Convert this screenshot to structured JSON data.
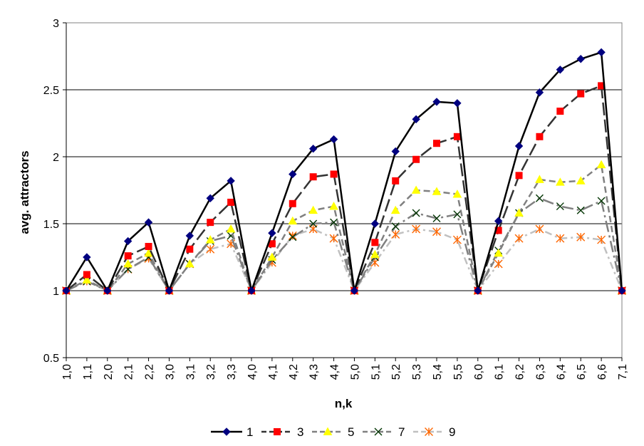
{
  "chart_data": {
    "type": "line",
    "title": "",
    "xlabel": "n,k",
    "ylabel": "avg. attractors",
    "ylim": [
      0.5,
      3
    ],
    "yticks": [
      "0.5",
      "1",
      "1.5",
      "2",
      "2.5",
      "3"
    ],
    "grid": "horizontal major gridlines",
    "legend_position": "bottom",
    "categories": [
      "1,0",
      "1,1",
      "2,0",
      "2,1",
      "2,2",
      "3,0",
      "3,1",
      "3,2",
      "3,3",
      "4,0",
      "4,1",
      "4,2",
      "4,3",
      "4,4",
      "5,0",
      "5,1",
      "5,2",
      "5,3",
      "5,4",
      "5,5",
      "6,0",
      "6,1",
      "6,2",
      "6,3",
      "6,4",
      "6,5",
      "6,6",
      "7,1"
    ],
    "series": [
      {
        "name": "1",
        "color": "#000000",
        "marker_color": "#000080",
        "marker": "diamond",
        "dash": "solid",
        "values": [
          1,
          1.25,
          1,
          1.37,
          1.51,
          1,
          1.41,
          1.69,
          1.82,
          1,
          1.43,
          1.87,
          2.06,
          2.13,
          1,
          1.5,
          2.04,
          2.28,
          2.41,
          2.4,
          1,
          1.52,
          2.08,
          2.48,
          2.65,
          2.73,
          2.78,
          1
        ]
      },
      {
        "name": "3",
        "color": "#333333",
        "marker_color": "#ff0000",
        "marker": "square",
        "dash": "long-dash",
        "values": [
          1,
          1.12,
          1,
          1.26,
          1.33,
          1,
          1.31,
          1.51,
          1.66,
          1,
          1.35,
          1.65,
          1.85,
          1.87,
          1,
          1.36,
          1.82,
          1.98,
          2.1,
          2.15,
          1,
          1.45,
          1.86,
          2.15,
          2.34,
          2.47,
          2.53,
          1
        ]
      },
      {
        "name": "5",
        "color": "#808080",
        "marker_color": "#ffff00",
        "marker": "triangle",
        "dash": "dash",
        "values": [
          1,
          1.08,
          1,
          1.2,
          1.28,
          1,
          1.2,
          1.38,
          1.46,
          1,
          1.25,
          1.52,
          1.6,
          1.63,
          1,
          1.27,
          1.6,
          1.75,
          1.74,
          1.72,
          1,
          1.28,
          1.58,
          1.83,
          1.81,
          1.82,
          1.94,
          1
        ]
      },
      {
        "name": "7",
        "color": "#808080",
        "marker_color": "#003300",
        "marker": "x",
        "dash": "long-dash-dot",
        "values": [
          1,
          1.07,
          1,
          1.16,
          1.25,
          1,
          1.2,
          1.37,
          1.41,
          1,
          1.23,
          1.4,
          1.5,
          1.51,
          1,
          1.25,
          1.48,
          1.58,
          1.54,
          1.57,
          1,
          1.3,
          1.58,
          1.69,
          1.63,
          1.6,
          1.67,
          1
        ]
      },
      {
        "name": "9",
        "color": "#c0c0c0",
        "marker_color": "#ff6600",
        "marker": "star",
        "dash": "dash-dot",
        "values": [
          1,
          1.07,
          1,
          1.16,
          1.24,
          1,
          1.2,
          1.31,
          1.35,
          1,
          1.21,
          1.41,
          1.46,
          1.39,
          1,
          1.21,
          1.42,
          1.46,
          1.44,
          1.38,
          1,
          1.2,
          1.39,
          1.46,
          1.39,
          1.4,
          1.38,
          1
        ]
      }
    ]
  }
}
